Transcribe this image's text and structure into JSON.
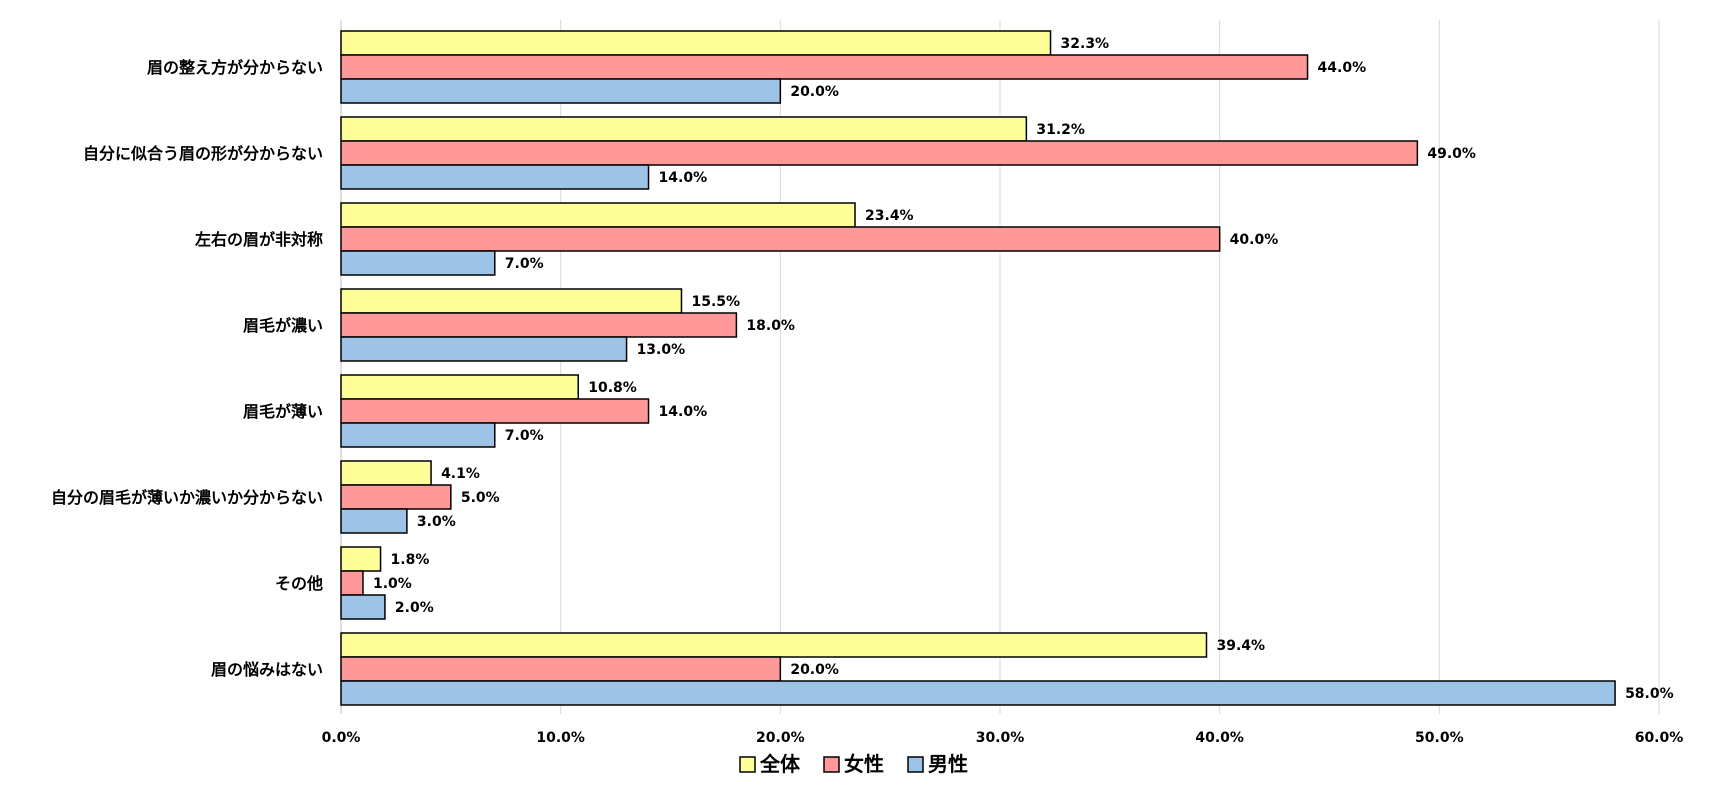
{
  "chart_data": {
    "type": "bar",
    "orientation": "horizontal",
    "title": "",
    "xlabel": "",
    "ylabel": "",
    "xlim": [
      0,
      60
    ],
    "x_ticks": [
      0,
      10,
      20,
      30,
      40,
      50,
      60
    ],
    "x_tick_labels": [
      "0.0%",
      "10.0%",
      "20.0%",
      "30.0%",
      "40.0%",
      "50.0%",
      "60.0%"
    ],
    "grid": true,
    "legend_position": "bottom-center",
    "categories": [
      "眉の整え方が分からない",
      "自分に似合う眉の形が分からない",
      "左右の眉が非対称",
      "眉毛が濃い",
      "眉毛が薄い",
      "自分の眉毛が薄いか濃いか分からない",
      "その他",
      "眉の悩みはない"
    ],
    "series": [
      {
        "name": "全体",
        "color": "#ffff99",
        "values": [
          32.3,
          31.2,
          23.4,
          15.5,
          10.8,
          4.1,
          1.8,
          39.4
        ],
        "labels": [
          "32.3%",
          "31.2%",
          "23.4%",
          "15.5%",
          "10.8%",
          "4.1%",
          "1.8%",
          "39.4%"
        ]
      },
      {
        "name": "女性",
        "color": "#ff9999",
        "values": [
          44.0,
          49.0,
          40.0,
          18.0,
          14.0,
          5.0,
          1.0,
          20.0
        ],
        "labels": [
          "44.0%",
          "49.0%",
          "40.0%",
          "18.0%",
          "14.0%",
          "5.0%",
          "1.0%",
          "20.0%"
        ]
      },
      {
        "name": "男性",
        "color": "#9dc3e6",
        "values": [
          20.0,
          14.0,
          7.0,
          13.0,
          7.0,
          3.0,
          2.0,
          58.0
        ],
        "labels": [
          "20.0%",
          "14.0%",
          "7.0%",
          "13.0%",
          "7.0%",
          "3.0%",
          "2.0%",
          "58.0%"
        ]
      }
    ]
  }
}
